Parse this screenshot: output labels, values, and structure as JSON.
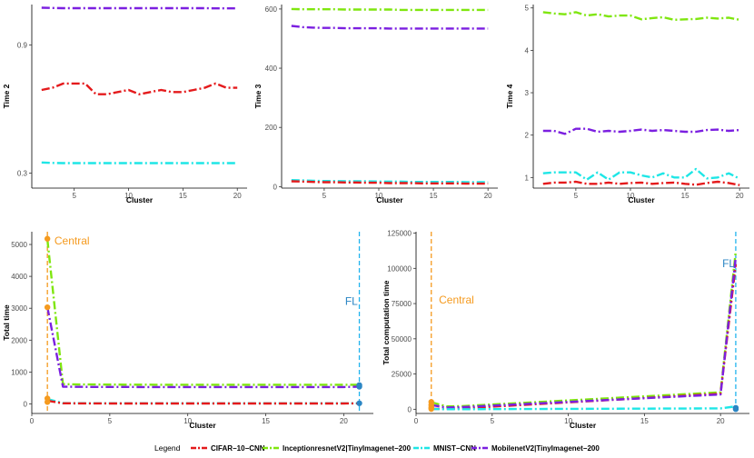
{
  "colors": {
    "cifar": "#E41A1C",
    "inception": "#7FE60F",
    "mnist": "#1EE6E6",
    "mobilenet": "#7B1FE0",
    "central": "#F59A1E",
    "fl": "#2B86C4",
    "fl_vline": "#22B4EE"
  },
  "legend": {
    "title": "Legend",
    "items": [
      {
        "key": "cifar",
        "label": "CIFAR−10−CNN"
      },
      {
        "key": "inception",
        "label": "InceptionresnetV2|TinyImagenet−200"
      },
      {
        "key": "mnist",
        "label": "MNIST−CNN"
      },
      {
        "key": "mobilenet",
        "label": "MobilenetV2|TinyImagenet−200"
      }
    ]
  },
  "chart_data": [
    {
      "id": "time2",
      "type": "line",
      "xlabel": "Cluster",
      "ylabel": "Time 2",
      "xlim": [
        1.1,
        20.9
      ],
      "ylim": [
        0.23,
        1.09
      ],
      "xticks": [
        5,
        10,
        15,
        20
      ],
      "yticks": [
        0.3,
        0.9
      ],
      "ytick_labels": [
        "0.3",
        "0.9"
      ],
      "x": [
        2,
        3,
        4,
        5,
        6,
        7,
        8,
        9,
        10,
        11,
        12,
        13,
        14,
        15,
        16,
        17,
        18,
        19,
        20
      ],
      "series": [
        {
          "key": "mobilenet",
          "values": [
            1.075,
            1.074,
            1.073,
            1.073,
            1.073,
            1.073,
            1.073,
            1.073,
            1.073,
            1.073,
            1.073,
            1.073,
            1.073,
            1.073,
            1.073,
            1.073,
            1.072,
            1.072,
            1.072
          ]
        },
        {
          "key": "cifar",
          "values": [
            0.69,
            0.7,
            0.72,
            0.72,
            0.72,
            0.67,
            0.67,
            0.68,
            0.69,
            0.67,
            0.68,
            0.69,
            0.68,
            0.68,
            0.69,
            0.7,
            0.72,
            0.7,
            0.7
          ]
        },
        {
          "key": "mnist",
          "values": [
            0.35,
            0.348,
            0.347,
            0.347,
            0.347,
            0.347,
            0.347,
            0.347,
            0.347,
            0.347,
            0.347,
            0.347,
            0.347,
            0.347,
            0.347,
            0.347,
            0.347,
            0.347,
            0.347
          ]
        }
      ]
    },
    {
      "id": "time3",
      "type": "line",
      "xlabel": "Cluster",
      "ylabel": "Time 3",
      "xlim": [
        1.1,
        20.9
      ],
      "ylim": [
        -5,
        615
      ],
      "xticks": [
        5,
        10,
        15,
        20
      ],
      "yticks": [
        0,
        200,
        400,
        600
      ],
      "ytick_labels": [
        "0",
        "200",
        "400",
        "600"
      ],
      "x": [
        2,
        3,
        4,
        5,
        6,
        7,
        8,
        9,
        10,
        11,
        12,
        13,
        14,
        15,
        16,
        17,
        18,
        19,
        20
      ],
      "series": [
        {
          "key": "inception",
          "values": [
            600,
            599,
            599,
            599,
            599,
            598,
            598,
            598,
            598,
            598,
            597,
            597,
            597,
            597,
            597,
            597,
            597,
            597,
            597
          ]
        },
        {
          "key": "mobilenet",
          "values": [
            543,
            539,
            537,
            536,
            536,
            535,
            535,
            535,
            535,
            534,
            534,
            534,
            534,
            534,
            534,
            534,
            534,
            534,
            534
          ]
        },
        {
          "key": "mnist",
          "values": [
            22,
            21,
            20,
            19,
            19,
            18,
            18,
            18,
            17,
            17,
            17,
            16,
            16,
            16,
            16,
            16,
            15,
            15,
            15
          ]
        },
        {
          "key": "cifar",
          "values": [
            18,
            17,
            16,
            15,
            15,
            14,
            14,
            13,
            13,
            12,
            12,
            12,
            11,
            11,
            11,
            11,
            10,
            10,
            10
          ]
        }
      ]
    },
    {
      "id": "time4",
      "type": "line",
      "xlabel": "Cluster",
      "ylabel": "Time 4",
      "xlim": [
        1.1,
        20.9
      ],
      "ylim": [
        0.75,
        5.08
      ],
      "xticks": [
        5,
        10,
        15,
        20
      ],
      "yticks": [
        1,
        2,
        3,
        4,
        5
      ],
      "ytick_labels": [
        "1",
        "2",
        "3",
        "4",
        "5"
      ],
      "x": [
        2,
        3,
        4,
        5,
        6,
        7,
        8,
        9,
        10,
        11,
        12,
        13,
        14,
        15,
        16,
        17,
        18,
        19,
        20
      ],
      "series": [
        {
          "key": "inception",
          "values": [
            4.9,
            4.87,
            4.85,
            4.9,
            4.82,
            4.85,
            4.8,
            4.82,
            4.82,
            4.73,
            4.76,
            4.78,
            4.72,
            4.73,
            4.74,
            4.77,
            4.75,
            4.77,
            4.72
          ]
        },
        {
          "key": "mobilenet",
          "values": [
            2.1,
            2.1,
            2.03,
            2.15,
            2.15,
            2.08,
            2.1,
            2.08,
            2.1,
            2.13,
            2.1,
            2.12,
            2.1,
            2.08,
            2.08,
            2.12,
            2.13,
            2.1,
            2.12
          ]
        },
        {
          "key": "mnist",
          "values": [
            1.1,
            1.12,
            1.12,
            1.12,
            0.95,
            1.12,
            0.95,
            1.12,
            1.12,
            1.05,
            1.0,
            1.1,
            1.0,
            1.0,
            1.2,
            0.98,
            1.0,
            1.1,
            0.97
          ]
        },
        {
          "key": "cifar",
          "values": [
            0.85,
            0.88,
            0.88,
            0.9,
            0.85,
            0.85,
            0.88,
            0.85,
            0.87,
            0.88,
            0.85,
            0.87,
            0.88,
            0.85,
            0.83,
            0.87,
            0.9,
            0.87,
            0.82
          ]
        }
      ]
    },
    {
      "id": "total_time",
      "type": "line",
      "xlabel": "Cluster",
      "ylabel": "Total time",
      "xlim": [
        0,
        21.9
      ],
      "ylim": [
        -300,
        5400
      ],
      "xticks": [
        0,
        5,
        10,
        15,
        20
      ],
      "yticks": [
        0,
        1000,
        2000,
        3000,
        4000,
        5000
      ],
      "ytick_labels": [
        "0",
        "1000",
        "2000",
        "3000",
        "4000",
        "5000"
      ],
      "x": [
        1,
        2,
        3,
        4,
        5,
        6,
        7,
        8,
        9,
        10,
        11,
        12,
        13,
        14,
        15,
        16,
        17,
        18,
        19,
        20,
        21
      ],
      "series": [
        {
          "key": "inception",
          "values": [
            5150,
            620,
            610,
            608,
            605,
            604,
            603,
            602,
            601,
            600,
            600,
            600,
            600,
            600,
            600,
            600,
            600,
            600,
            600,
            600,
            600
          ]
        },
        {
          "key": "mobilenet",
          "values": [
            3030,
            540,
            535,
            533,
            532,
            531,
            530,
            530,
            530,
            530,
            530,
            530,
            530,
            530,
            530,
            530,
            530,
            530,
            530,
            530,
            540
          ]
        },
        {
          "key": "mnist",
          "values": [
            150,
            25,
            22,
            20,
            20,
            19,
            18,
            18,
            18,
            18,
            18,
            18,
            18,
            18,
            18,
            18,
            18,
            18,
            18,
            18,
            20
          ]
        },
        {
          "key": "cifar",
          "values": [
            100,
            20,
            16,
            15,
            14,
            14,
            14,
            13,
            13,
            13,
            13,
            13,
            13,
            13,
            13,
            13,
            13,
            13,
            13,
            13,
            15
          ]
        }
      ],
      "vlines": [
        {
          "x": 1,
          "color_key": "central"
        },
        {
          "x": 21,
          "color_key": "fl_vline"
        }
      ],
      "points": [
        {
          "x": 1,
          "y": 5180,
          "color_key": "central"
        },
        {
          "x": 1,
          "y": 3030,
          "color_key": "central"
        },
        {
          "x": 1,
          "y": 170,
          "color_key": "central"
        },
        {
          "x": 1,
          "y": 60,
          "color_key": "central"
        },
        {
          "x": 21,
          "y": 590,
          "color_key": "fl"
        },
        {
          "x": 21,
          "y": 540,
          "color_key": "fl"
        },
        {
          "x": 21,
          "y": 20,
          "color_key": "fl"
        }
      ],
      "annotations": [
        {
          "text": "Central",
          "x": 1.45,
          "y": 5000,
          "color_key": "central",
          "anchor": "start"
        },
        {
          "text": "FL",
          "x": 20.9,
          "y": 3100,
          "color_key": "fl",
          "anchor": "end"
        }
      ]
    },
    {
      "id": "total_computation",
      "type": "line",
      "xlabel": "Cluster",
      "ylabel": "Total computation time",
      "xlim": [
        0,
        21.9
      ],
      "ylim": [
        -3000,
        126000
      ],
      "xticks": [
        0,
        5,
        10,
        15,
        20
      ],
      "yticks": [
        0,
        25000,
        50000,
        75000,
        100000,
        125000
      ],
      "ytick_labels": [
        "0",
        "25000",
        "50000",
        "75000",
        "100000",
        "125000"
      ],
      "x": [
        1,
        2,
        3,
        20,
        21
      ],
      "series": [
        {
          "key": "inception",
          "values": [
            5000,
            2000,
            2200,
            12000,
            112000
          ]
        },
        {
          "key": "cifar",
          "values": [
            200,
            300,
            600,
            11000,
            103000
          ]
        },
        {
          "key": "mobilenet",
          "values": [
            3000,
            1200,
            1500,
            10500,
            108000
          ]
        },
        {
          "key": "mnist",
          "values": [
            150,
            50,
            60,
            600,
            2000
          ]
        }
      ],
      "vlines": [
        {
          "x": 1,
          "color_key": "central"
        },
        {
          "x": 21,
          "color_key": "fl_vline"
        }
      ],
      "points": [
        {
          "x": 1,
          "y": 5200,
          "color_key": "central"
        },
        {
          "x": 1,
          "y": 3000,
          "color_key": "central"
        },
        {
          "x": 1,
          "y": 1200,
          "color_key": "central"
        },
        {
          "x": 1,
          "y": 200,
          "color_key": "central"
        },
        {
          "x": 21,
          "y": 1000,
          "color_key": "fl"
        },
        {
          "x": 21,
          "y": 100,
          "color_key": "fl"
        }
      ],
      "annotations": [
        {
          "text": "Central",
          "x": 1.5,
          "y": 75000,
          "color_key": "central",
          "anchor": "start"
        },
        {
          "text": "FL",
          "x": 20.95,
          "y": 101000,
          "color_key": "fl",
          "anchor": "end"
        }
      ]
    }
  ]
}
